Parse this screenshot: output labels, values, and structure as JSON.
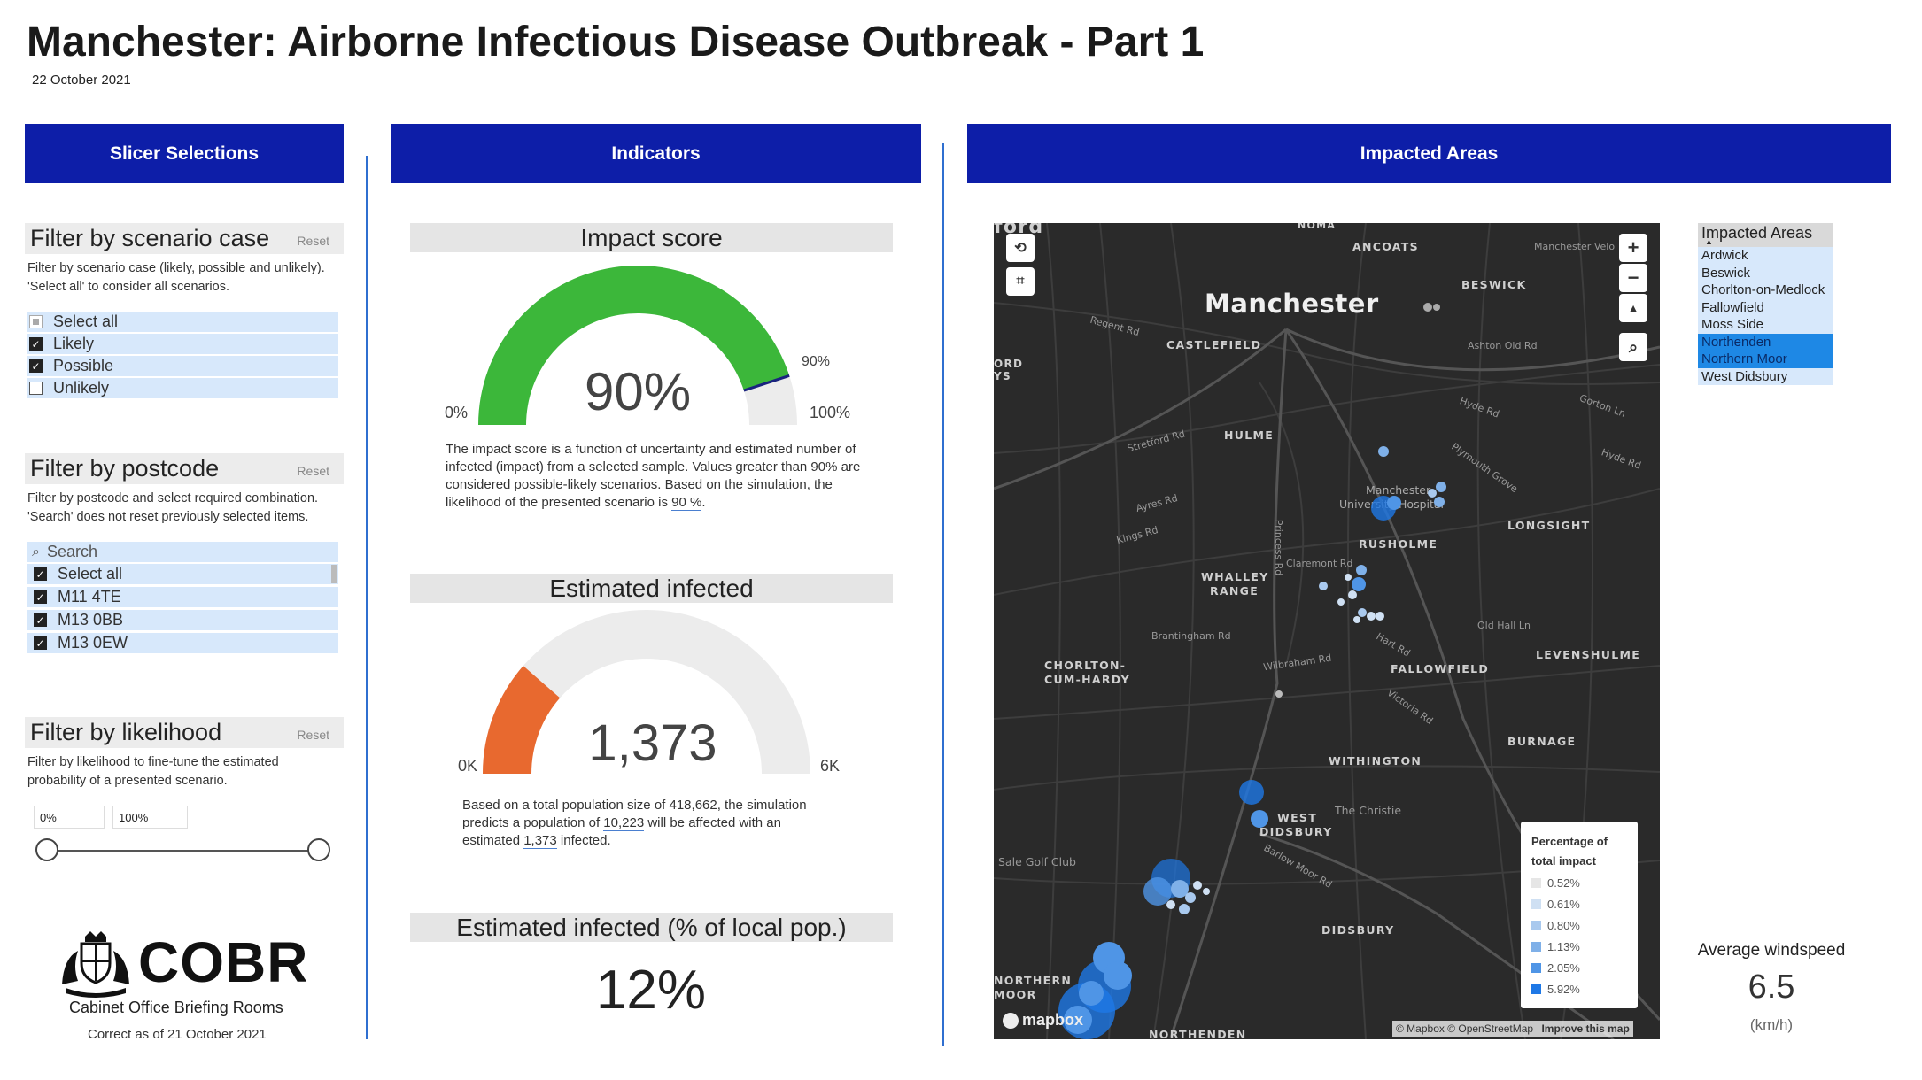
{
  "header": {
    "title": "Manchester: Airborne Infectious Disease Outbreak - Part 1",
    "date": "22 October 2021"
  },
  "banners": {
    "slicer": "Slicer Selections",
    "indicators": "Indicators",
    "areas": "Impacted Areas"
  },
  "filters": {
    "scenario": {
      "title": "Filter by scenario case",
      "reset": "Reset",
      "desc1": "Filter by scenario case (likely, possible and unlikely).",
      "desc2": "'Select all' to consider all scenarios.",
      "options": [
        {
          "label": "Select all",
          "state": "partial"
        },
        {
          "label": "Likely",
          "state": "checked"
        },
        {
          "label": "Possible",
          "state": "checked"
        },
        {
          "label": "Unlikely",
          "state": "unchecked"
        }
      ]
    },
    "postcode": {
      "title": "Filter by postcode",
      "reset": "Reset",
      "desc1": "Filter by postcode and select required combination.",
      "desc2": "'Search' does not reset previously selected items.",
      "search_placeholder": "Search",
      "options": [
        {
          "label": "Select all",
          "state": "checked"
        },
        {
          "label": "M11 4TE",
          "state": "checked"
        },
        {
          "label": "M13 0BB",
          "state": "checked"
        },
        {
          "label": "M13 0EW",
          "state": "checked"
        }
      ]
    },
    "likelihood": {
      "title": "Filter by likelihood",
      "reset": "Reset",
      "desc1": "Filter by likelihood to fine-tune the estimated",
      "desc2": "probability of a presented scenario.",
      "min": "0%",
      "max": "100%"
    }
  },
  "logo": {
    "name": "COBR",
    "subtitle": "Cabinet Office Briefing Rooms",
    "correct": "Correct as of 21 October 2021"
  },
  "indicators": {
    "impact": {
      "title": "Impact score",
      "value": "90%",
      "fraction": 0.9,
      "target_label": "90%",
      "min": "0%",
      "max": "100%",
      "color": "#3cb73a",
      "text1": "The impact score is a function of uncertainty and estimated number of",
      "text2": "infected (impact) from a selected sample.  Values greater than 90% are",
      "text3": "considered possible-likely scenarios. Based on the simulation, the",
      "text4_pre": "likelihood of the presented scenario is ",
      "text4_val": "90 %",
      "text4_post": "."
    },
    "infected": {
      "title": "Estimated infected",
      "value": "1,373",
      "fraction": 0.2288,
      "min": "0K",
      "max": "6K",
      "color": "#e8692f",
      "text1": "Based on a total population size of 418,662, the simulation",
      "text2_pre": "predicts a population of ",
      "text2_val": "10,223",
      "text2_post": " will be affected with an",
      "text3_pre": "estimated ",
      "text3_val": "1,373",
      "text3_post": " infected."
    },
    "pct": {
      "title": "Estimated infected (% of local pop.)",
      "value": "12%"
    }
  },
  "map": {
    "labels": {
      "city": "Manchester",
      "ancoats": "ANCOATS",
      "beswick": "BESWICK",
      "castlefield": "CASTLEFIELD",
      "hulme": "HULME",
      "rusholme": "RUSHOLME",
      "longsight": "LONGSIGHT",
      "whalley": "WHALLEY",
      "range": "RANGE",
      "chorlton": "CHORLTON-",
      "cum_hardy": "CUM-HARDY",
      "fallowfield": "FALLOWFIELD",
      "levenshulme": "LEVENSHULME",
      "burnage": "BURNAGE",
      "withington": "WITHINGTON",
      "west": "WEST",
      "didsbury": "DIDSBURY",
      "didsbury2": "DIDSBURY",
      "northern": "NORTHERN",
      "moor": "MOOR",
      "northenden": "NORTHENDEN",
      "hospital1": "Manchester",
      "hospital2": "University Hospital",
      "christie": "The Christie",
      "golf": "Sale Golf Club",
      "noma": "NOMA",
      "r_regent": "Regent Rd",
      "r_ashton": "Ashton Old Rd",
      "r_hyde": "Hyde Rd",
      "r_stretford": "Stretford Rd",
      "r_plymouth": "Plymouth Grove",
      "r_ayres": "Ayres Rd",
      "r_kings": "Kings Rd",
      "r_brantingham": "Brantingham Rd",
      "r_wilbraham": "Wilbraham Rd",
      "r_oldhall": "Old Hall Ln",
      "r_hart": "Hart Rd",
      "r_claremont": "Claremont Rd",
      "r_barlow": "Barlow Moor Rd",
      "r_princess": "Princess Rd",
      "r_victoria": "Victoria Rd",
      "r_gorton": "Gorton Ln",
      "r_velo": "Manchester Velo",
      "frag_tl": "ford",
      "frag_ord": "ORD",
      "frag_ys": "YS"
    },
    "brand": "mapbox",
    "attribution": "© Mapbox © OpenStreetMap",
    "improve": "Improve this map",
    "legend": {
      "title1": "Percentage of",
      "title2": "total impact",
      "items": [
        {
          "label": "0.52%",
          "color": "#e6e6e6"
        },
        {
          "label": "0.61%",
          "color": "#cfe0f3"
        },
        {
          "label": "0.80%",
          "color": "#a9c9ee"
        },
        {
          "label": "1.13%",
          "color": "#7fb0e8"
        },
        {
          "label": "2.05%",
          "color": "#4f95e6"
        },
        {
          "label": "5.92%",
          "color": "#1e78e6"
        }
      ]
    }
  },
  "impacted_areas": {
    "title": "Impacted Areas",
    "items": [
      {
        "label": "Ardwick",
        "selected": false
      },
      {
        "label": "Beswick",
        "selected": false
      },
      {
        "label": "Chorlton-on-Medlock",
        "selected": false
      },
      {
        "label": "Fallowfield",
        "selected": false
      },
      {
        "label": "Moss Side",
        "selected": false
      },
      {
        "label": "Northenden",
        "selected": true
      },
      {
        "label": "Northern Moor",
        "selected": true
      },
      {
        "label": "West Didsbury",
        "selected": false
      }
    ]
  },
  "windspeed": {
    "title": "Average windspeed",
    "value": "6.5",
    "unit": "(km/h)"
  }
}
